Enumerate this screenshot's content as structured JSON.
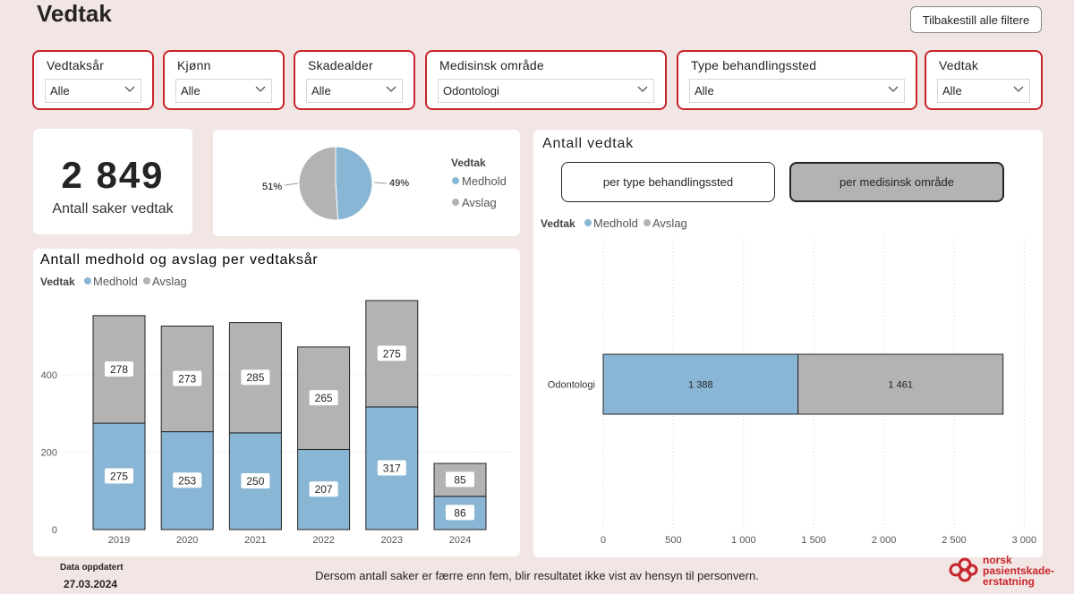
{
  "page": {
    "title": "Vedtak",
    "reset_button": "Tilbakestill alle filtere"
  },
  "filters": [
    {
      "label": "Vedtaksår",
      "value": "Alle"
    },
    {
      "label": "Kjønn",
      "value": "Alle"
    },
    {
      "label": "Skadealder",
      "value": "Alle"
    },
    {
      "label": "Medisinsk område",
      "value": "Odontologi"
    },
    {
      "label": "Type behandlingssted",
      "value": "Alle"
    },
    {
      "label": "Vedtak",
      "value": "Alle"
    }
  ],
  "kpi": {
    "value": "2 849",
    "label": "Antall saker vedtak"
  },
  "colors": {
    "medhold": "#8ab6d6",
    "avslag": "#b3b3b3",
    "accent": "#c8242b",
    "background": "#f2e6e4"
  },
  "legend": {
    "title": "Vedtak",
    "items": [
      "Medhold",
      "Avslag"
    ]
  },
  "pie": {
    "title": "",
    "labels": [
      "51%",
      "49%"
    ]
  },
  "bar_chart": {
    "title": "Antall medhold og avslag per vedtaksår"
  },
  "hbar_chart": {
    "title": "Antall vedtak",
    "toggle_left": "per type behandlingssted",
    "toggle_right": "per medisinsk område"
  },
  "footer": {
    "note": "Dersom antall saker er færre enn fem, blir resultatet ikke vist av hensyn til personvern.",
    "updated_label": "Data oppdatert",
    "updated_date": "27.03.2024",
    "logo_text": [
      "norsk",
      "pasientskade-",
      "erstatning"
    ]
  },
  "chart_data": [
    {
      "type": "pie",
      "title": "",
      "categories": [
        "Medhold",
        "Avslag"
      ],
      "values": [
        49,
        51
      ],
      "labels": [
        "49%",
        "51%"
      ],
      "legend_title": "Vedtak",
      "legend_position": "right"
    },
    {
      "type": "bar",
      "stacked": true,
      "title": "Antall medhold og avslag per vedtaksår",
      "categories": [
        "2019",
        "2020",
        "2021",
        "2022",
        "2023",
        "2024"
      ],
      "series": [
        {
          "name": "Medhold",
          "values": [
            275,
            253,
            250,
            207,
            317,
            86
          ]
        },
        {
          "name": "Avslag",
          "values": [
            278,
            273,
            285,
            265,
            275,
            85
          ]
        }
      ],
      "yticks": [
        "0",
        "200",
        "400"
      ],
      "ylim": [
        0,
        600
      ],
      "legend_title": "Vedtak",
      "legend_position": "top-left",
      "grid": true
    },
    {
      "type": "bar",
      "orientation": "horizontal",
      "stacked": true,
      "title": "Antall vedtak",
      "categories": [
        "Odontologi"
      ],
      "series": [
        {
          "name": "Medhold",
          "values": [
            1388
          ],
          "labels": [
            "1 388"
          ]
        },
        {
          "name": "Avslag",
          "values": [
            1461
          ],
          "labels": [
            "1 461"
          ]
        }
      ],
      "xticks": [
        "0",
        "500",
        "1 000",
        "1 500",
        "2 000",
        "2 500",
        "3 000"
      ],
      "xlim": [
        0,
        3000
      ],
      "legend_title": "Vedtak",
      "legend_position": "top-left",
      "grid": true
    }
  ]
}
